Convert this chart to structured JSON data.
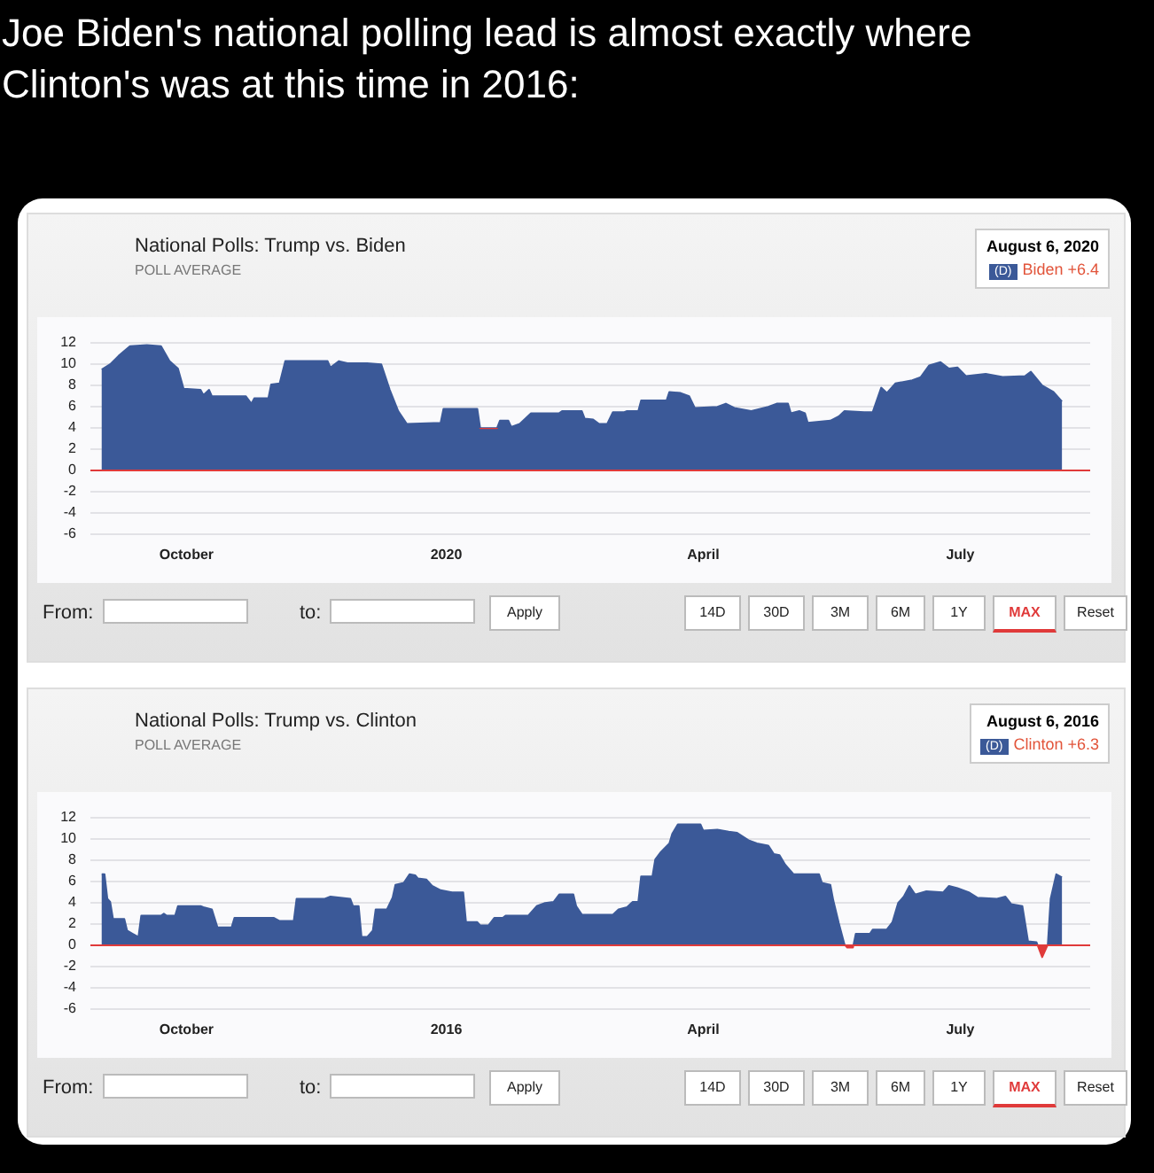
{
  "chart_data": [
    {
      "type": "other",
      "title": "Joe Biden's national polling lead is almost exactly where Clinton's was at this time in 2016:"
    },
    {
      "type": "area",
      "title": "National Polls: Trump vs. Biden",
      "subtitle": "POLL AVERAGE",
      "annotations": [
        "August 6, 2020",
        "(D)",
        "Biden +6.4",
        "From:",
        "to:",
        "Apply",
        "14D",
        "30D",
        "3M",
        "6M",
        "1Y",
        "MAX",
        "Reset"
      ],
      "x": [
        "2019-09-01",
        "2019-09-04",
        "2019-09-07",
        "2019-09-11",
        "2019-09-17",
        "2019-09-22",
        "2019-09-25",
        "2019-09-28",
        "2019-09-30",
        "2019-10-06",
        "2019-10-07",
        "2019-10-09",
        "2019-10-10",
        "2019-10-22",
        "2019-10-24",
        "2019-10-25",
        "2019-10-30",
        "2019-10-31",
        "2019-11-03",
        "2019-11-05",
        "2019-11-20",
        "2019-11-21",
        "2019-11-24",
        "2019-11-27",
        "2019-12-04",
        "2019-12-09",
        "2019-12-12",
        "2019-12-15",
        "2019-12-18",
        "2019-12-30",
        "2019-12-31",
        "2020-01-12",
        "2020-01-13",
        "2020-01-19",
        "2020-01-20",
        "2020-01-23",
        "2020-01-24",
        "2020-01-27",
        "2020-01-31",
        "2020-02-10",
        "2020-02-11",
        "2020-02-18",
        "2020-02-19",
        "2020-02-22",
        "2020-02-24",
        "2020-02-27",
        "2020-02-29",
        "2020-03-04",
        "2020-03-05",
        "2020-03-09",
        "2020-03-10",
        "2020-03-19",
        "2020-03-20",
        "2020-03-24",
        "2020-03-27",
        "2020-03-29",
        "2020-04-06",
        "2020-04-09",
        "2020-04-12",
        "2020-04-18",
        "2020-04-24",
        "2020-04-27",
        "2020-05-01",
        "2020-05-02",
        "2020-05-05",
        "2020-05-07",
        "2020-05-08",
        "2020-05-16",
        "2020-05-19",
        "2020-05-21",
        "2020-05-28",
        "2020-05-31",
        "2020-06-03",
        "2020-06-05",
        "2020-06-08",
        "2020-06-14",
        "2020-06-17",
        "2020-06-20",
        "2020-06-24",
        "2020-06-27",
        "2020-06-30",
        "2020-07-03",
        "2020-07-10",
        "2020-07-16",
        "2020-07-24",
        "2020-07-26",
        "2020-07-30",
        "2020-08-03",
        "2020-08-06"
      ],
      "series": [
        {
          "color": "#3b5998",
          "values": [
            9.4,
            9.9,
            10.7,
            11.6,
            11.7,
            11.6,
            10.2,
            9.5,
            7.6,
            7.5,
            7.0,
            7.5,
            6.9,
            6.9,
            6.2,
            6.7,
            6.7,
            8.0,
            8.1,
            10.2,
            10.2,
            9.6,
            10.2,
            10.0,
            10.0,
            9.9,
            7.5,
            5.5,
            4.3,
            4.4,
            5.7,
            5.7,
            3.9,
            3.9,
            4.6,
            4.6,
            4.0,
            4.3,
            5.3,
            5.3,
            5.5,
            5.5,
            4.8,
            4.7,
            4.3,
            4.3,
            5.4,
            5.4,
            5.5,
            5.5,
            6.5,
            6.5,
            7.3,
            7.2,
            6.9,
            5.8,
            5.9,
            6.2,
            5.8,
            5.5,
            5.9,
            6.2,
            6.2,
            5.3,
            5.5,
            5.3,
            4.4,
            4.6,
            5.0,
            5.5,
            5.4,
            5.4,
            7.7,
            7.2,
            8.1,
            8.4,
            8.7,
            9.8,
            10.1,
            9.5,
            9.6,
            8.8,
            9.0,
            8.7,
            8.8,
            9.2,
            7.9,
            7.3,
            6.4
          ]
        }
      ],
      "xlim": [
        "2019-08-28",
        "2020-08-16"
      ],
      "xticks": [
        {
          "value": "2019-10-01",
          "label": "October"
        },
        {
          "value": "2020-01-01",
          "label": "2020"
        },
        {
          "value": "2020-04-01",
          "label": "April"
        },
        {
          "value": "2020-07-01",
          "label": "July"
        }
      ],
      "ylim": [
        -6,
        12
      ],
      "yticks": [
        -6,
        -4,
        -2,
        0,
        2,
        4,
        6,
        8,
        10,
        12
      ],
      "ref_lines": [
        {
          "axis": "y",
          "value": 0,
          "label": null,
          "color": "#e03a3a"
        }
      ],
      "grid": "y"
    },
    {
      "type": "area",
      "title": "National Polls: Trump vs. Clinton",
      "subtitle": "POLL AVERAGE",
      "annotations": [
        "August 6, 2016",
        "(D)",
        "Clinton +6.3",
        "From:",
        "to:",
        "Apply",
        "14D",
        "30D",
        "3M",
        "6M",
        "1Y",
        "MAX",
        "Reset"
      ],
      "x": [
        "2015-09-01",
        "2015-09-02",
        "2015-09-03",
        "2015-09-04",
        "2015-09-05",
        "2015-09-09",
        "2015-09-10",
        "2015-09-12",
        "2015-09-14",
        "2015-09-15",
        "2015-09-22",
        "2015-09-23",
        "2015-09-24",
        "2015-09-27",
        "2015-09-28",
        "2015-10-06",
        "2015-10-07",
        "2015-10-10",
        "2015-10-12",
        "2015-10-17",
        "2015-10-18",
        "2015-11-01",
        "2015-11-03",
        "2015-11-08",
        "2015-11-09",
        "2015-11-19",
        "2015-11-21",
        "2015-11-28",
        "2015-11-29",
        "2015-12-01",
        "2015-12-02",
        "2015-12-04",
        "2015-12-06",
        "2015-12-07",
        "2015-12-11",
        "2015-12-13",
        "2015-12-14",
        "2015-12-17",
        "2015-12-19",
        "2015-12-21",
        "2015-12-22",
        "2015-12-25",
        "2015-12-27",
        "2015-12-30",
        "2016-01-03",
        "2016-01-07",
        "2016-01-08",
        "2016-01-12",
        "2016-01-13",
        "2016-01-16",
        "2016-01-18",
        "2016-01-21",
        "2016-01-22",
        "2016-01-30",
        "2016-02-02",
        "2016-02-05",
        "2016-02-08",
        "2016-02-10",
        "2016-02-15",
        "2016-02-16",
        "2016-02-18",
        "2016-02-29",
        "2016-03-02",
        "2016-03-05",
        "2016-03-07",
        "2016-03-09",
        "2016-03-10",
        "2016-03-14",
        "2016-03-15",
        "2016-03-17",
        "2016-03-20",
        "2016-03-21",
        "2016-03-23",
        "2016-03-31",
        "2016-04-01",
        "2016-04-06",
        "2016-04-10",
        "2016-04-13",
        "2016-04-17",
        "2016-04-20",
        "2016-04-24",
        "2016-04-26",
        "2016-04-28",
        "2016-04-30",
        "2016-05-03",
        "2016-05-12",
        "2016-05-13",
        "2016-05-16",
        "2016-05-17",
        "2016-05-19",
        "2016-05-21",
        "2016-05-22",
        "2016-05-24",
        "2016-05-25",
        "2016-05-30",
        "2016-05-31",
        "2016-06-05",
        "2016-06-07",
        "2016-06-09",
        "2016-06-11",
        "2016-06-13",
        "2016-06-15",
        "2016-06-19",
        "2016-06-25",
        "2016-06-27",
        "2016-06-30",
        "2016-07-04",
        "2016-07-07",
        "2016-07-14",
        "2016-07-17",
        "2016-07-19",
        "2016-07-23",
        "2016-07-25",
        "2016-07-28",
        "2016-07-30",
        "2016-08-01",
        "2016-08-02",
        "2016-08-04",
        "2016-08-06"
      ],
      "series": [
        {
          "color": "#3b5998",
          "values": [
            6.6,
            6.6,
            4.3,
            4.0,
            2.4,
            2.4,
            1.3,
            1.0,
            0.7,
            2.7,
            2.7,
            2.9,
            2.7,
            2.7,
            3.6,
            3.6,
            3.5,
            3.3,
            1.6,
            1.6,
            2.5,
            2.5,
            2.2,
            2.2,
            4.3,
            4.3,
            4.5,
            4.3,
            3.6,
            3.6,
            0.7,
            0.7,
            1.3,
            3.3,
            3.3,
            4.4,
            5.6,
            5.8,
            6.6,
            6.5,
            6.2,
            6.1,
            5.5,
            5.1,
            4.9,
            4.9,
            2.1,
            2.1,
            1.8,
            1.8,
            2.5,
            2.5,
            2.7,
            2.7,
            3.6,
            3.9,
            4.0,
            4.7,
            4.7,
            3.6,
            2.8,
            2.8,
            3.3,
            3.5,
            4.0,
            4.0,
            6.4,
            6.4,
            8.0,
            8.7,
            9.5,
            10.4,
            11.3,
            11.3,
            10.7,
            10.8,
            10.6,
            10.5,
            9.8,
            9.5,
            9.3,
            8.5,
            8.4,
            7.5,
            6.6,
            6.6,
            5.8,
            5.6,
            4.2,
            2.0,
            0,
            -0.3,
            -0.3,
            1.0,
            1.0,
            1.4,
            1.4,
            2.1,
            3.9,
            4.5,
            5.5,
            4.7,
            5.0,
            4.9,
            5.5,
            5.3,
            4.9,
            4.4,
            4.3,
            4.5,
            3.8,
            3.6,
            0.3,
            0.2,
            -1.2,
            0,
            4.3,
            6.6,
            6.3
          ]
        }
      ],
      "xlim": [
        "2015-08-28",
        "2016-08-16"
      ],
      "xticks": [
        {
          "value": "2015-10-01",
          "label": "October"
        },
        {
          "value": "2016-01-01",
          "label": "2016"
        },
        {
          "value": "2016-04-01",
          "label": "April"
        },
        {
          "value": "2016-07-01",
          "label": "July"
        }
      ],
      "ylim": [
        -6,
        12
      ],
      "yticks": [
        -6,
        -4,
        -2,
        0,
        2,
        4,
        6,
        8,
        10,
        12
      ],
      "ref_lines": [
        {
          "axis": "y",
          "value": 0,
          "label": null,
          "color": "#e03a3a"
        }
      ],
      "grid": "y"
    }
  ]
}
